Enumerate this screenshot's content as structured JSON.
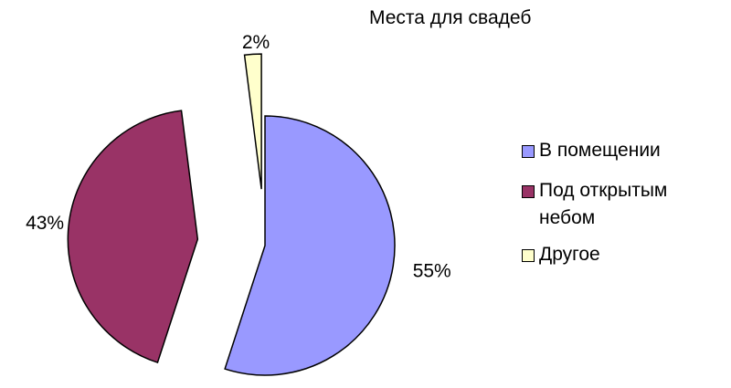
{
  "chart_data": {
    "type": "pie",
    "title": "Места для свадеб",
    "slices": [
      {
        "label": "В помещении",
        "value": 55,
        "value_label": "55%",
        "color": "#9999ff"
      },
      {
        "label": "Под открытым небом",
        "value": 43,
        "value_label": "43%",
        "color": "#993366"
      },
      {
        "label": "Другое",
        "value": 2,
        "value_label": "2%",
        "color": "#ffffcc"
      }
    ],
    "exploded": true,
    "legend_position": "right"
  }
}
